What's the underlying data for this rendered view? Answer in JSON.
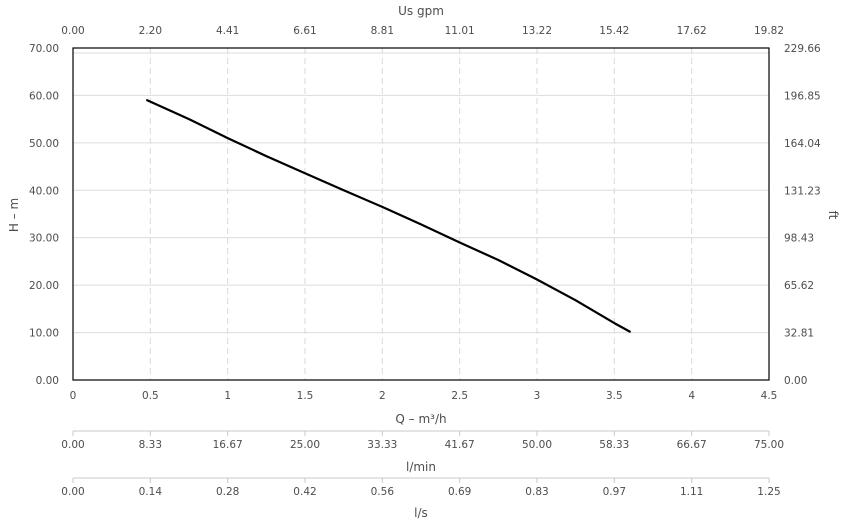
{
  "chart_data": {
    "type": "line",
    "x_label": "Q – m³/h",
    "y_label": "H – m",
    "y2_label": "ft",
    "x2_top_label": "Us gpm",
    "x3_label": "l/min",
    "x4_label": "l/s",
    "xlim": [
      0,
      4.5
    ],
    "ylim": [
      0,
      70
    ],
    "grid": "on",
    "x_ticks": [
      "0",
      "0.5",
      "1",
      "1.5",
      "2",
      "2.5",
      "3",
      "3.5",
      "4",
      "4.5"
    ],
    "y_ticks": [
      "0.00",
      "10.00",
      "20.00",
      "30.00",
      "40.00",
      "50.00",
      "60.00",
      "70.00"
    ],
    "y2_ticks": [
      "0.00",
      "32.81",
      "65.62",
      "98.43",
      "131.23",
      "164.04",
      "196.85",
      "229.66"
    ],
    "top_ticks": [
      "0.00",
      "2.20",
      "4.41",
      "6.61",
      "8.81",
      "11.01",
      "13.22",
      "15.42",
      "17.62",
      "19.82"
    ],
    "lmin_ticks": [
      "0.00",
      "8.33",
      "16.67",
      "25.00",
      "33.33",
      "41.67",
      "50.00",
      "58.33",
      "66.67",
      "75.00"
    ],
    "ls_ticks": [
      "0.00",
      "0.14",
      "0.28",
      "0.42",
      "0.56",
      "0.69",
      "0.83",
      "0.97",
      "1.11",
      "1.25"
    ],
    "series": [
      {
        "x": [
          0.48,
          0.75,
          1.0,
          1.25,
          1.5,
          1.75,
          2.0,
          2.25,
          2.5,
          2.75,
          3.0,
          3.25,
          3.5,
          3.6
        ],
        "y": [
          59.0,
          55.0,
          51.0,
          47.2,
          43.6,
          40.0,
          36.5,
          32.8,
          29.0,
          25.3,
          21.2,
          16.8,
          12.0,
          10.2
        ]
      }
    ]
  }
}
